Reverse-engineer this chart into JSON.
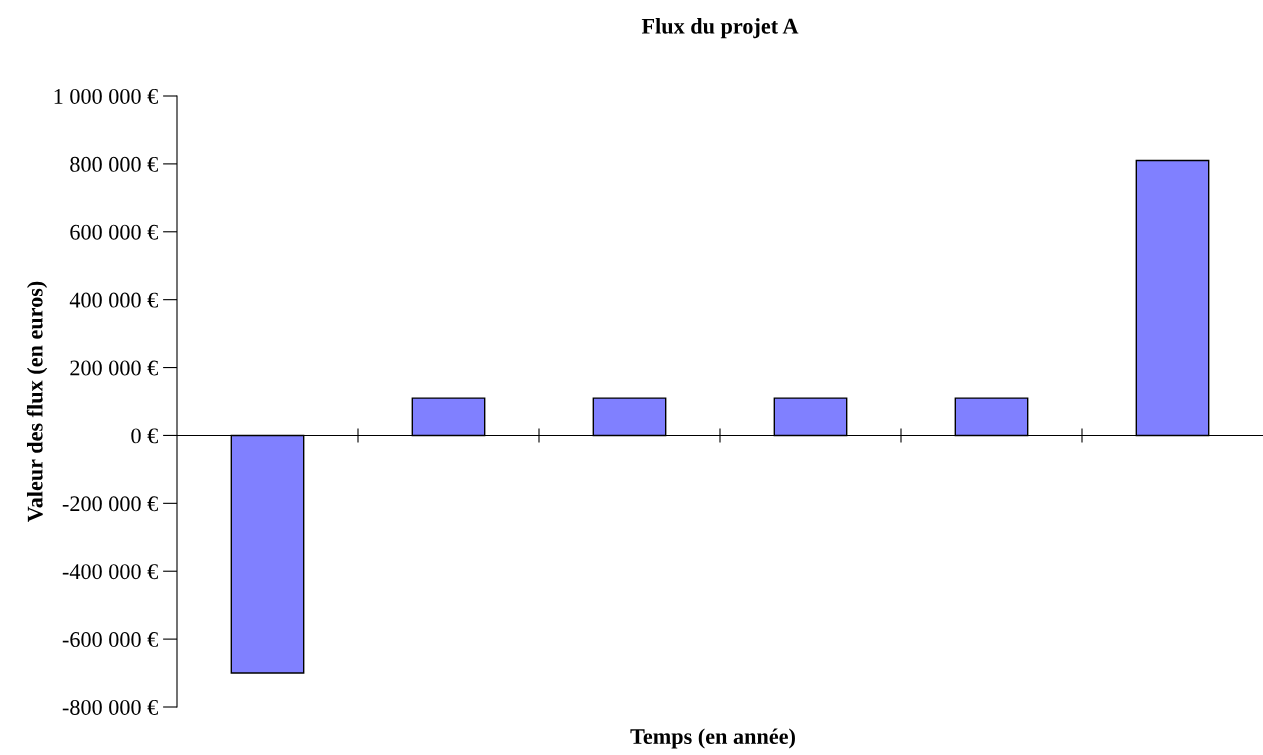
{
  "chart_data": {
    "type": "bar",
    "title": "Flux du projet A",
    "xlabel": "Temps (en année)",
    "ylabel": "Valeur des flux (en euros)",
    "categories": [
      null,
      null,
      null,
      null,
      null,
      null
    ],
    "values": [
      -700000,
      110000,
      110000,
      110000,
      110000,
      810000
    ],
    "color": "#8080ff",
    "ylim": [
      -800000,
      1000000
    ],
    "yticks": [
      {
        "value": -800000,
        "label": "-800 000 €"
      },
      {
        "value": -600000,
        "label": "-600 000 €"
      },
      {
        "value": -400000,
        "label": "-400 000 €"
      },
      {
        "value": -200000,
        "label": "-200 000 €"
      },
      {
        "value": 0,
        "label": "0 €"
      },
      {
        "value": 200000,
        "label": "200 000 €"
      },
      {
        "value": 400000,
        "label": "400 000 €"
      },
      {
        "value": 600000,
        "label": "600 000 €"
      },
      {
        "value": 800000,
        "label": "800 000 €"
      },
      {
        "value": 1000000,
        "label": "1 000 000 €"
      }
    ],
    "legend": false
  }
}
